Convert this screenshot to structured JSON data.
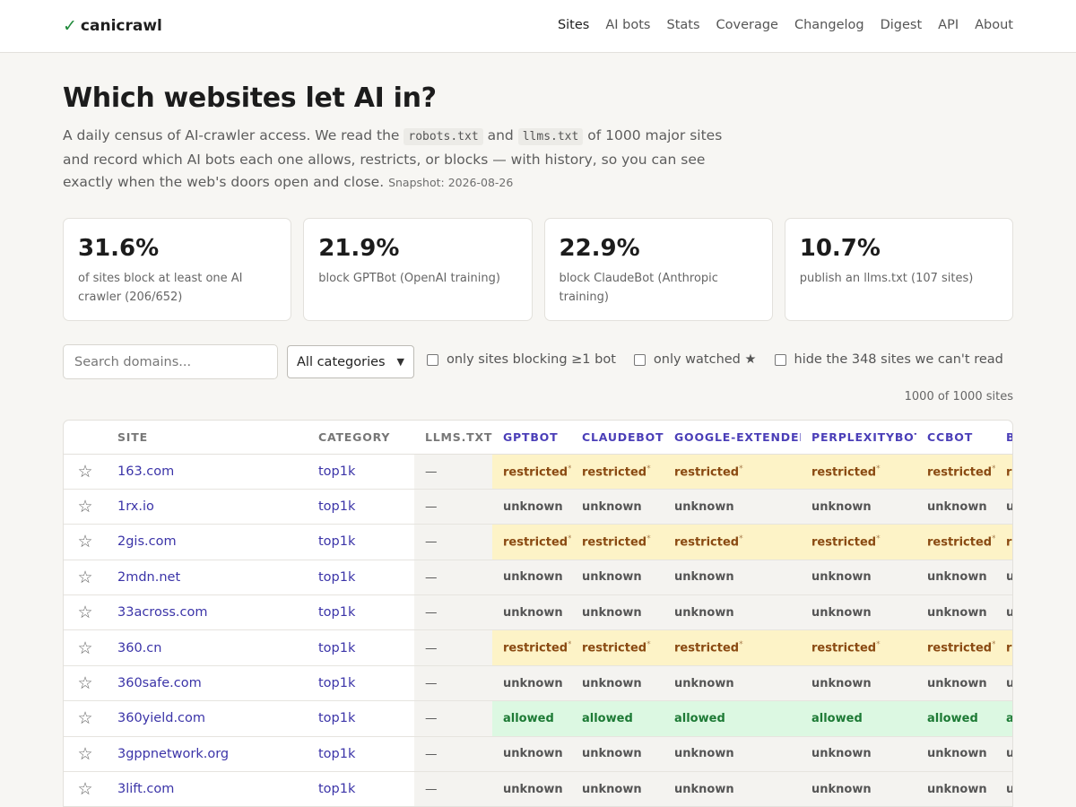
{
  "header": {
    "logo": "canicrawl",
    "nav": [
      "Sites",
      "AI bots",
      "Stats",
      "Coverage",
      "Changelog",
      "Digest",
      "API",
      "About"
    ]
  },
  "hero": {
    "title": "Which websites let AI in?",
    "desc_1": "A daily census of AI-crawler access. We read the",
    "code_1": "robots.txt",
    "desc_2": "and",
    "code_2": "llms.txt",
    "desc_3": "of 1000 major sites and record which AI bots each one allows, restricts, or blocks — with history, so you can see exactly when the web's doors open and close.",
    "snapshot": "Snapshot: 2026-08-26"
  },
  "stats": [
    {
      "value": "31.6%",
      "label": "of sites block at least one AI crawler (206/652)"
    },
    {
      "value": "21.9%",
      "label": "block GPTBot (OpenAI training)"
    },
    {
      "value": "22.9%",
      "label": "block ClaudeBot (Anthropic training)"
    },
    {
      "value": "10.7%",
      "label": "publish an llms.txt (107 sites)"
    }
  ],
  "filters": {
    "search_placeholder": "Search domains...",
    "category_selected": "All categories",
    "only_blocking": "only sites blocking ≥1 bot",
    "only_watched": "only watched ★",
    "hide_unreadable": "hide the 348 sites we can't read",
    "count_text": "1000 of 1000 sites"
  },
  "table": {
    "columns": [
      "SITE",
      "CATEGORY",
      "LLMS.TXT"
    ],
    "bot_columns": [
      "GPTBOT",
      "CLAUDEBOT",
      "GOOGLE-EXTENDED",
      "PERPLEXITYBOT",
      "CCBOT",
      "BYTESPIDER"
    ],
    "star_glyph": "☆",
    "llms_empty": "—",
    "rows": [
      {
        "site": "163.com",
        "category": "top1k",
        "status": "restricted"
      },
      {
        "site": "1rx.io",
        "category": "top1k",
        "status": "unknown"
      },
      {
        "site": "2gis.com",
        "category": "top1k",
        "status": "restricted"
      },
      {
        "site": "2mdn.net",
        "category": "top1k",
        "status": "unknown"
      },
      {
        "site": "33across.com",
        "category": "top1k",
        "status": "unknown"
      },
      {
        "site": "360.cn",
        "category": "top1k",
        "status": "restricted"
      },
      {
        "site": "360safe.com",
        "category": "top1k",
        "status": "unknown"
      },
      {
        "site": "360yield.com",
        "category": "top1k",
        "status": "allowed"
      },
      {
        "site": "3gppnetwork.org",
        "category": "top1k",
        "status": "unknown"
      },
      {
        "site": "3lift.com",
        "category": "top1k",
        "status": "unknown"
      }
    ]
  },
  "colors": {
    "accent": "#3b34a8",
    "restricted_bg": "#fdf3c7",
    "allowed_bg": "#dcf8e2",
    "unknown_bg": "#f4f3f0"
  }
}
